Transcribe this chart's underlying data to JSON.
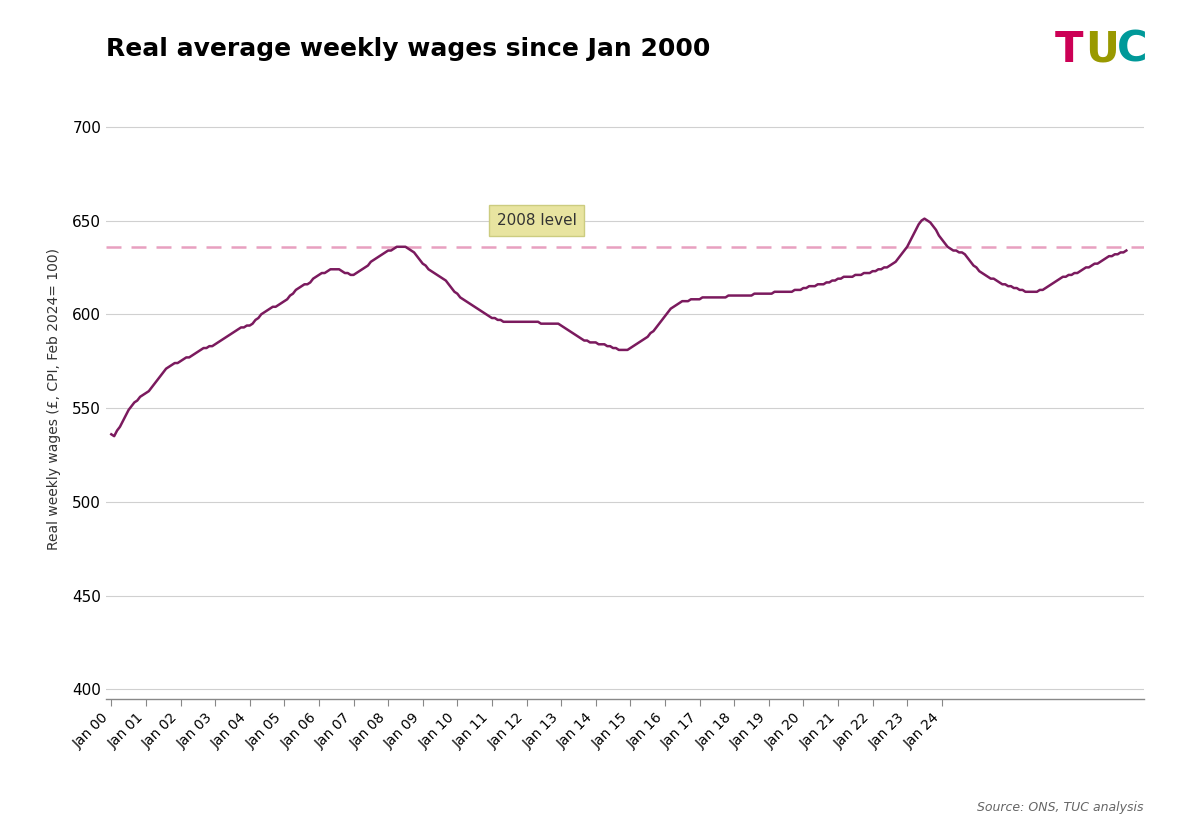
{
  "title": "Real average weekly wages since Jan 2000",
  "ylabel": "Real weekly wages (£, CPI, Feb 2024= 100)",
  "source": "Source: ONS, TUC analysis",
  "line_color": "#7b1a5e",
  "dashed_line_color": "#e8a0c0",
  "dashed_line_value": 636.0,
  "annotation_text": "2008 level",
  "annotation_box_color": "#e8e4a0",
  "ylim": [
    395,
    715
  ],
  "yticks": [
    400,
    450,
    500,
    550,
    600,
    650,
    700
  ],
  "data": [
    536,
    535,
    538,
    540,
    543,
    546,
    549,
    551,
    553,
    554,
    556,
    557,
    558,
    559,
    561,
    563,
    565,
    567,
    569,
    571,
    572,
    573,
    574,
    574,
    575,
    576,
    577,
    577,
    578,
    579,
    580,
    581,
    582,
    582,
    583,
    583,
    584,
    585,
    586,
    587,
    588,
    589,
    590,
    591,
    592,
    593,
    593,
    594,
    594,
    595,
    597,
    598,
    600,
    601,
    602,
    603,
    604,
    604,
    605,
    606,
    607,
    608,
    610,
    611,
    613,
    614,
    615,
    616,
    616,
    617,
    619,
    620,
    621,
    622,
    622,
    623,
    624,
    624,
    624,
    624,
    623,
    622,
    622,
    621,
    621,
    622,
    623,
    624,
    625,
    626,
    628,
    629,
    630,
    631,
    632,
    633,
    634,
    634,
    635,
    636,
    636,
    636,
    636,
    635,
    634,
    633,
    631,
    629,
    627,
    626,
    624,
    623,
    622,
    621,
    620,
    619,
    618,
    616,
    614,
    612,
    611,
    609,
    608,
    607,
    606,
    605,
    604,
    603,
    602,
    601,
    600,
    599,
    598,
    598,
    597,
    597,
    596,
    596,
    596,
    596,
    596,
    596,
    596,
    596,
    596,
    596,
    596,
    596,
    596,
    595,
    595,
    595,
    595,
    595,
    595,
    595,
    594,
    593,
    592,
    591,
    590,
    589,
    588,
    587,
    586,
    586,
    585,
    585,
    585,
    584,
    584,
    584,
    583,
    583,
    582,
    582,
    581,
    581,
    581,
    581,
    582,
    583,
    584,
    585,
    586,
    587,
    588,
    590,
    591,
    593,
    595,
    597,
    599,
    601,
    603,
    604,
    605,
    606,
    607,
    607,
    607,
    608,
    608,
    608,
    608,
    609,
    609,
    609,
    609,
    609,
    609,
    609,
    609,
    609,
    610,
    610,
    610,
    610,
    610,
    610,
    610,
    610,
    610,
    611,
    611,
    611,
    611,
    611,
    611,
    611,
    612,
    612,
    612,
    612,
    612,
    612,
    612,
    613,
    613,
    613,
    614,
    614,
    615,
    615,
    615,
    616,
    616,
    616,
    617,
    617,
    618,
    618,
    619,
    619,
    620,
    620,
    620,
    620,
    621,
    621,
    621,
    622,
    622,
    622,
    623,
    623,
    624,
    624,
    625,
    625,
    626,
    627,
    628,
    630,
    632,
    634,
    636,
    639,
    642,
    645,
    648,
    650,
    651,
    650,
    649,
    647,
    645,
    642,
    640,
    638,
    636,
    635,
    634,
    634,
    633,
    633,
    632,
    630,
    628,
    626,
    625,
    623,
    622,
    621,
    620,
    619,
    619,
    618,
    617,
    616,
    616,
    615,
    615,
    614,
    614,
    613,
    613,
    612,
    612,
    612,
    612,
    612,
    613,
    613,
    614,
    615,
    616,
    617,
    618,
    619,
    620,
    620,
    621,
    621,
    622,
    622,
    623,
    624,
    625,
    625,
    626,
    627,
    627,
    628,
    629,
    630,
    631,
    631,
    632,
    632,
    633,
    633,
    634
  ],
  "xtick_years": [
    2000,
    2001,
    2002,
    2003,
    2004,
    2005,
    2006,
    2007,
    2008,
    2009,
    2010,
    2011,
    2012,
    2013,
    2014,
    2015,
    2016,
    2017,
    2018,
    2019,
    2020,
    2021,
    2022,
    2023,
    2024
  ],
  "xtick_labels": [
    "Jan 00",
    "Jan 01",
    "Jan 02",
    "Jan 03",
    "Jan 04",
    "Jan 05",
    "Jan 06",
    "Jan 07",
    "Jan 08",
    "Jan 09",
    "Jan 10",
    "Jan 11",
    "Jan 12",
    "Jan 13",
    "Jan 14",
    "Jan 15",
    "Jan 16",
    "Jan 17",
    "Jan 18",
    "Jan 19",
    "Jan 20",
    "Jan 21",
    "Jan 22",
    "Jan 23",
    "Jan 24"
  ]
}
